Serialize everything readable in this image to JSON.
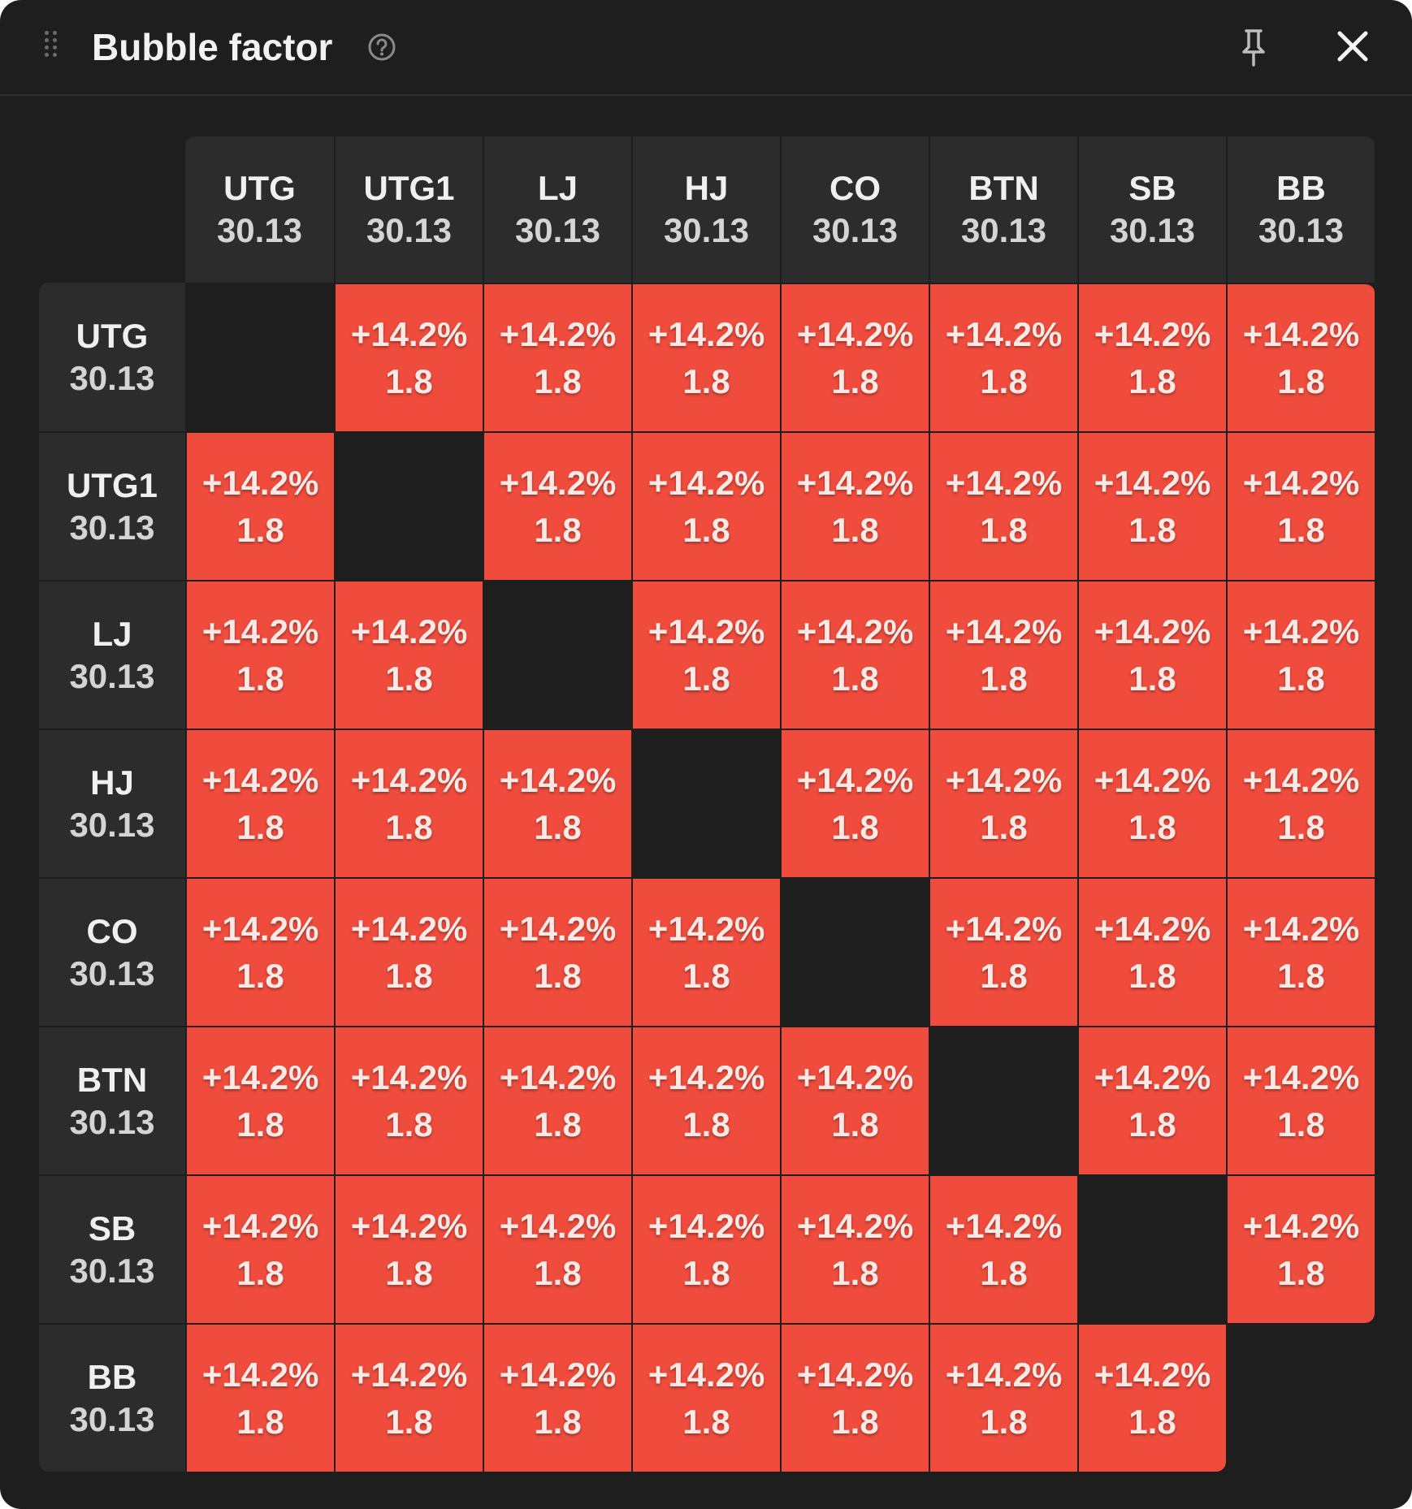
{
  "window": {
    "title": "Bubble factor",
    "icons": {
      "drag": "drag-handle-icon",
      "help": "help-circle-icon",
      "pin": "pin-icon",
      "close": "close-icon"
    }
  },
  "positions": [
    {
      "name": "UTG",
      "stack": "30.13"
    },
    {
      "name": "UTG1",
      "stack": "30.13"
    },
    {
      "name": "LJ",
      "stack": "30.13"
    },
    {
      "name": "HJ",
      "stack": "30.13"
    },
    {
      "name": "CO",
      "stack": "30.13"
    },
    {
      "name": "BTN",
      "stack": "30.13"
    },
    {
      "name": "SB",
      "stack": "30.13"
    },
    {
      "name": "BB",
      "stack": "30.13"
    }
  ],
  "matrix": [
    [
      null,
      {
        "pct": "+14.2%",
        "bf": "1.8"
      },
      {
        "pct": "+14.2%",
        "bf": "1.8"
      },
      {
        "pct": "+14.2%",
        "bf": "1.8"
      },
      {
        "pct": "+14.2%",
        "bf": "1.8"
      },
      {
        "pct": "+14.2%",
        "bf": "1.8"
      },
      {
        "pct": "+14.2%",
        "bf": "1.8"
      },
      {
        "pct": "+14.2%",
        "bf": "1.8"
      }
    ],
    [
      {
        "pct": "+14.2%",
        "bf": "1.8"
      },
      null,
      {
        "pct": "+14.2%",
        "bf": "1.8"
      },
      {
        "pct": "+14.2%",
        "bf": "1.8"
      },
      {
        "pct": "+14.2%",
        "bf": "1.8"
      },
      {
        "pct": "+14.2%",
        "bf": "1.8"
      },
      {
        "pct": "+14.2%",
        "bf": "1.8"
      },
      {
        "pct": "+14.2%",
        "bf": "1.8"
      }
    ],
    [
      {
        "pct": "+14.2%",
        "bf": "1.8"
      },
      {
        "pct": "+14.2%",
        "bf": "1.8"
      },
      null,
      {
        "pct": "+14.2%",
        "bf": "1.8"
      },
      {
        "pct": "+14.2%",
        "bf": "1.8"
      },
      {
        "pct": "+14.2%",
        "bf": "1.8"
      },
      {
        "pct": "+14.2%",
        "bf": "1.8"
      },
      {
        "pct": "+14.2%",
        "bf": "1.8"
      }
    ],
    [
      {
        "pct": "+14.2%",
        "bf": "1.8"
      },
      {
        "pct": "+14.2%",
        "bf": "1.8"
      },
      {
        "pct": "+14.2%",
        "bf": "1.8"
      },
      null,
      {
        "pct": "+14.2%",
        "bf": "1.8"
      },
      {
        "pct": "+14.2%",
        "bf": "1.8"
      },
      {
        "pct": "+14.2%",
        "bf": "1.8"
      },
      {
        "pct": "+14.2%",
        "bf": "1.8"
      }
    ],
    [
      {
        "pct": "+14.2%",
        "bf": "1.8"
      },
      {
        "pct": "+14.2%",
        "bf": "1.8"
      },
      {
        "pct": "+14.2%",
        "bf": "1.8"
      },
      {
        "pct": "+14.2%",
        "bf": "1.8"
      },
      null,
      {
        "pct": "+14.2%",
        "bf": "1.8"
      },
      {
        "pct": "+14.2%",
        "bf": "1.8"
      },
      {
        "pct": "+14.2%",
        "bf": "1.8"
      }
    ],
    [
      {
        "pct": "+14.2%",
        "bf": "1.8"
      },
      {
        "pct": "+14.2%",
        "bf": "1.8"
      },
      {
        "pct": "+14.2%",
        "bf": "1.8"
      },
      {
        "pct": "+14.2%",
        "bf": "1.8"
      },
      {
        "pct": "+14.2%",
        "bf": "1.8"
      },
      null,
      {
        "pct": "+14.2%",
        "bf": "1.8"
      },
      {
        "pct": "+14.2%",
        "bf": "1.8"
      }
    ],
    [
      {
        "pct": "+14.2%",
        "bf": "1.8"
      },
      {
        "pct": "+14.2%",
        "bf": "1.8"
      },
      {
        "pct": "+14.2%",
        "bf": "1.8"
      },
      {
        "pct": "+14.2%",
        "bf": "1.8"
      },
      {
        "pct": "+14.2%",
        "bf": "1.8"
      },
      {
        "pct": "+14.2%",
        "bf": "1.8"
      },
      null,
      {
        "pct": "+14.2%",
        "bf": "1.8"
      }
    ],
    [
      {
        "pct": "+14.2%",
        "bf": "1.8"
      },
      {
        "pct": "+14.2%",
        "bf": "1.8"
      },
      {
        "pct": "+14.2%",
        "bf": "1.8"
      },
      {
        "pct": "+14.2%",
        "bf": "1.8"
      },
      {
        "pct": "+14.2%",
        "bf": "1.8"
      },
      {
        "pct": "+14.2%",
        "bf": "1.8"
      },
      {
        "pct": "+14.2%",
        "bf": "1.8"
      },
      null
    ]
  ],
  "colors": {
    "cell": "#ef4c3d",
    "background": "#1e1e1e",
    "header": "#2c2c2c"
  }
}
